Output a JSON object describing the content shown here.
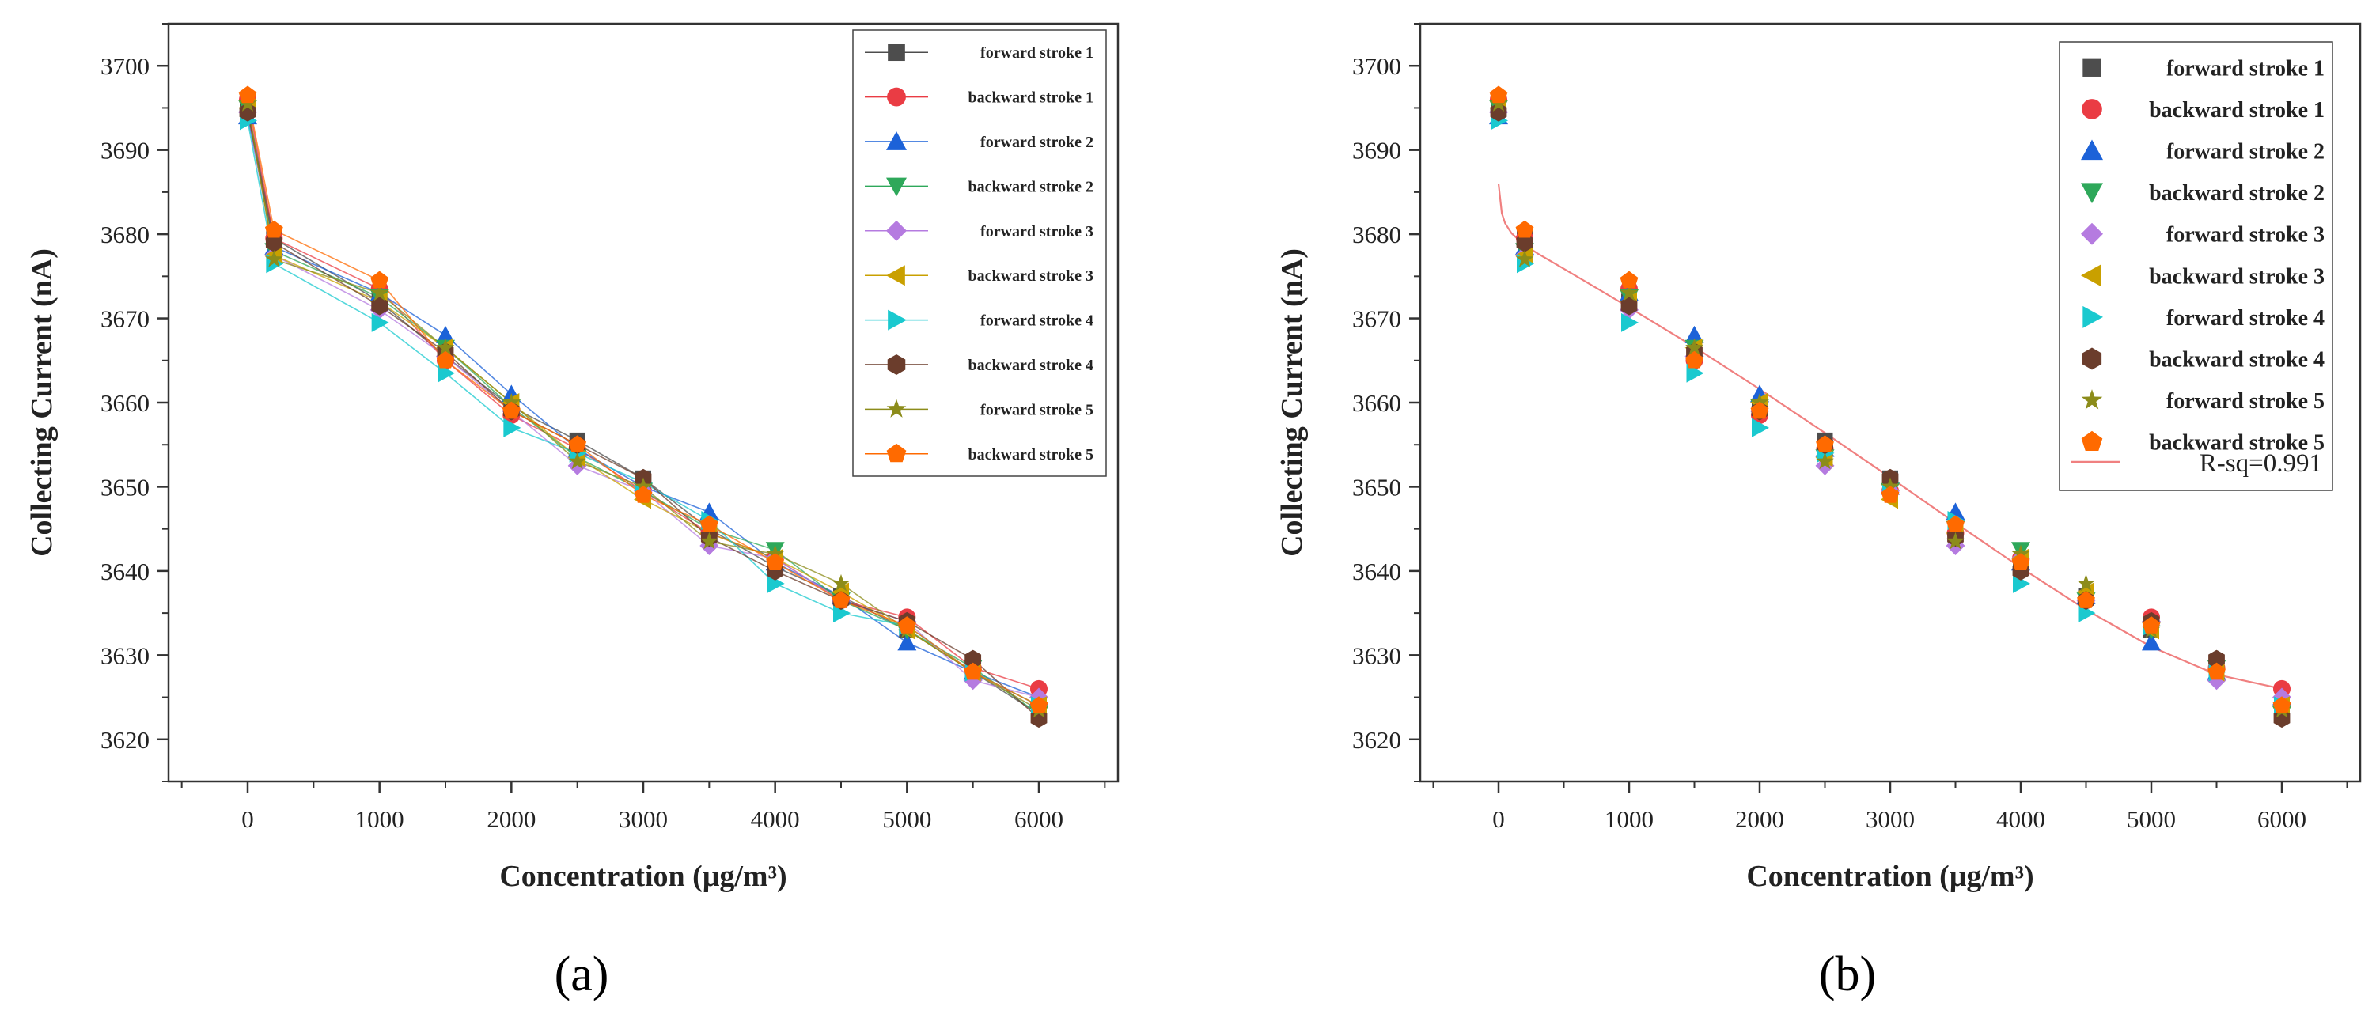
{
  "chart_data": [
    {
      "panel_label": "(a)",
      "type": "line",
      "xlabel": "Concentration (μg/m³)",
      "ylabel": "Collecting Current (nA)",
      "xlim": [
        -600,
        6600
      ],
      "ylim": [
        3615,
        3705
      ],
      "xticks": [
        0,
        1000,
        2000,
        3000,
        4000,
        5000,
        6000
      ],
      "yticks": [
        3620,
        3630,
        3640,
        3650,
        3660,
        3670,
        3680,
        3690,
        3700
      ],
      "x": [
        0,
        200,
        1000,
        1500,
        2000,
        2500,
        3000,
        3500,
        4000,
        4500,
        5000,
        5500,
        6000
      ],
      "legend_position": "top-right",
      "series": [
        {
          "name": "forward stroke 1",
          "color": "#4d4d4d",
          "marker": "square",
          "values": [
            3695,
            3679.5,
            3672,
            3665.5,
            3659.5,
            3655.5,
            3651,
            3645,
            3640.5,
            3637,
            3633,
            3628,
            3623
          ]
        },
        {
          "name": "backward stroke 1",
          "color": "#ea3c44",
          "marker": "circle",
          "values": [
            3696,
            3679.5,
            3673.5,
            3665,
            3658.5,
            3654.5,
            3649.5,
            3644.5,
            3641.5,
            3636.5,
            3634.5,
            3628.5,
            3626
          ]
        },
        {
          "name": "forward stroke 2",
          "color": "#1c62d8",
          "marker": "triangle-up",
          "values": [
            3694,
            3678.5,
            3673,
            3668,
            3661,
            3654.5,
            3650,
            3647,
            3641,
            3637,
            3631.5,
            3628,
            3625
          ]
        },
        {
          "name": "backward stroke 2",
          "color": "#2ea85a",
          "marker": "triangle-down",
          "values": [
            3695,
            3678,
            3672.5,
            3666.5,
            3659.5,
            3653.5,
            3649.5,
            3645,
            3642.5,
            3636.5,
            3633,
            3628.5,
            3623
          ]
        },
        {
          "name": "forward stroke 3",
          "color": "#b57be0",
          "marker": "diamond",
          "values": [
            3694.5,
            3677.5,
            3671,
            3665.5,
            3659,
            3652.5,
            3649.5,
            3643,
            3641.5,
            3636.5,
            3634,
            3627,
            3625
          ]
        },
        {
          "name": "backward stroke 3",
          "color": "#c9a000",
          "marker": "triangle-left",
          "values": [
            3695,
            3677.5,
            3672,
            3666.5,
            3660,
            3653.5,
            3648.5,
            3644.5,
            3641.5,
            3637.5,
            3633,
            3628,
            3624
          ]
        },
        {
          "name": "forward stroke 4",
          "color": "#1ac9cf",
          "marker": "triangle-right",
          "values": [
            3693.5,
            3676.5,
            3669.5,
            3663.5,
            3657,
            3654,
            3650.5,
            3646,
            3638.5,
            3635,
            3633.5,
            3628,
            3624
          ]
        },
        {
          "name": "backward stroke 4",
          "color": "#6b3d2c",
          "marker": "hexagon",
          "values": [
            3694.5,
            3679,
            3671.5,
            3666,
            3659,
            3655,
            3651,
            3644,
            3640,
            3636.5,
            3634,
            3629.5,
            3622.5
          ]
        },
        {
          "name": "forward stroke 5",
          "color": "#8c8c1a",
          "marker": "star",
          "values": [
            3695.5,
            3677,
            3673,
            3666.5,
            3660,
            3653,
            3650,
            3643.5,
            3642,
            3638.5,
            3633,
            3628,
            3623.5
          ]
        },
        {
          "name": "backward stroke 5",
          "color": "#ff6a00",
          "marker": "pentagon",
          "values": [
            3696.5,
            3680.5,
            3674.5,
            3665,
            3659,
            3655,
            3649,
            3645.5,
            3641,
            3636.5,
            3633.5,
            3628,
            3624
          ]
        }
      ]
    },
    {
      "panel_label": "(b)",
      "type": "scatter",
      "xlabel": "Concentration (μg/m³)",
      "ylabel": "Collecting Current (nA)",
      "xlim": [
        -600,
        6600
      ],
      "ylim": [
        3615,
        3705
      ],
      "xticks": [
        0,
        1000,
        2000,
        3000,
        4000,
        5000,
        6000
      ],
      "yticks": [
        3620,
        3630,
        3640,
        3650,
        3660,
        3670,
        3680,
        3690,
        3700
      ],
      "legend_position": "top-right",
      "fit": {
        "label": "R-sq=0.991",
        "color": "#f08080",
        "x": [
          0,
          25,
          50,
          100,
          150,
          200,
          300,
          500,
          750,
          1000,
          1500,
          2000,
          2500,
          3000,
          3500,
          4000,
          4500,
          5000,
          5500,
          6000
        ],
        "y": [
          3686,
          3682.5,
          3681.3,
          3680.1,
          3679.4,
          3678.7,
          3677.7,
          3675.9,
          3673.6,
          3671.3,
          3666.6,
          3661.6,
          3656.4,
          3651.1,
          3645.7,
          3640.4,
          3635.4,
          3631.0,
          3627.7,
          3626.0
        ]
      }
    }
  ]
}
